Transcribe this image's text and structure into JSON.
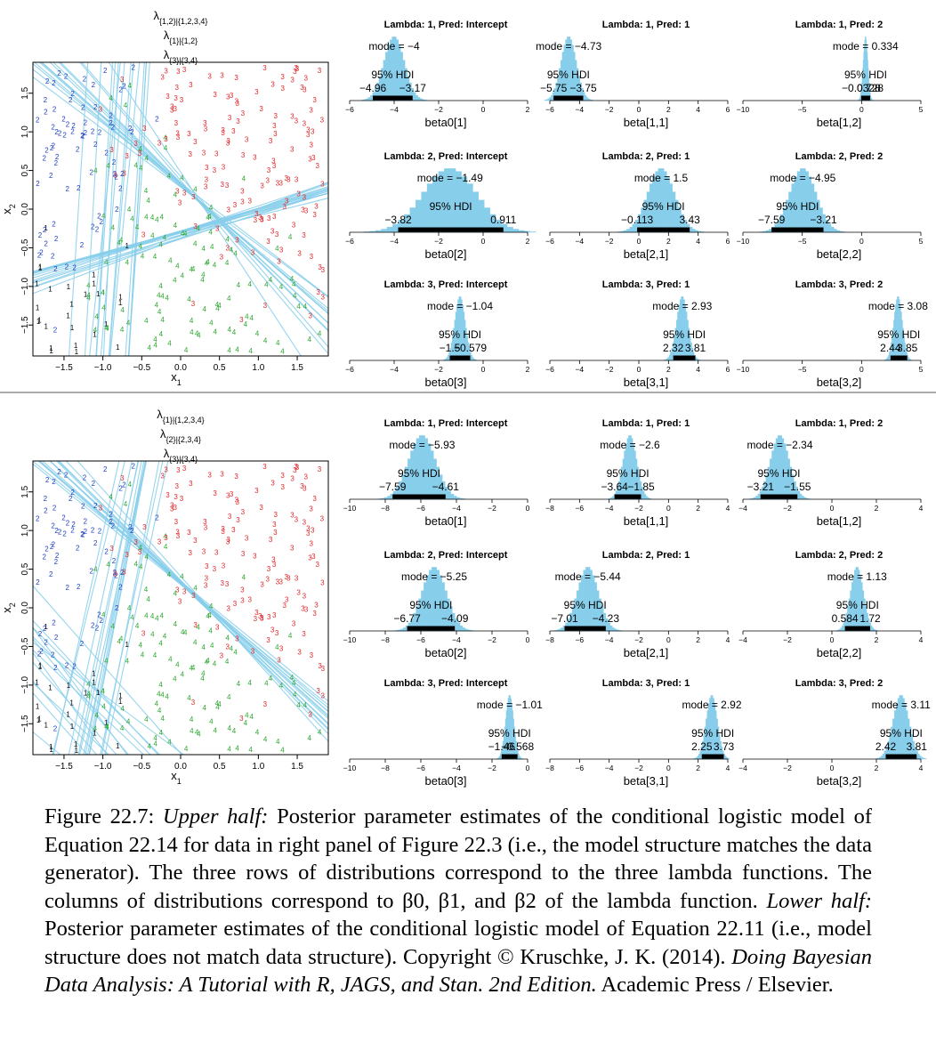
{
  "halves": [
    {
      "lambda_labels": [
        "λ{1,2}|{1,2,3,4}",
        "λ{1}|{1,2}",
        "λ{3}|{3,4}"
      ],
      "scatter": {
        "x_ticks": [
          "−1.5",
          "−1.0",
          "−0.5",
          "0.0",
          "0.5",
          "1.0",
          "1.5"
        ],
        "y_ticks": [
          "−1.5",
          "−1.0",
          "−0.5",
          "0.0",
          "0.5",
          "1.0",
          "1.5"
        ],
        "xlabel": "x1",
        "ylabel": "x2",
        "xlim": [
          -1.9,
          1.9
        ],
        "ylim": [
          -1.9,
          1.9
        ],
        "boundaries": [
          {
            "type": "line",
            "beta0": -4,
            "beta1": -4.73,
            "beta2": 0.334
          },
          {
            "type": "line",
            "beta0": -1.49,
            "beta1": 1.5,
            "beta2": -4.95
          },
          {
            "type": "line",
            "beta0": -1.04,
            "beta1": 2.93,
            "beta2": 3.08
          }
        ]
      },
      "panels": [
        [
          {
            "title": "Lambda: 1, Pred: Intercept",
            "mode": "−4",
            "hdi_lo": "−4.96",
            "hdi_hi": "−3.17",
            "xlabel": "beta0[1]",
            "xlim": [
              -6,
              2
            ],
            "ticks": [
              "−6",
              "−4",
              "−2",
              "0",
              "2"
            ],
            "mode_v": -4,
            "lo_v": -4.96,
            "hi_v": -3.17
          },
          {
            "title": "Lambda: 1, Pred: 1",
            "mode": "−4.73",
            "hdi_lo": "−5.75",
            "hdi_hi": "−3.75",
            "xlabel": "beta[1,1]",
            "xlim": [
              -6,
              6
            ],
            "ticks": [
              "−6",
              "−4",
              "−2",
              "0",
              "2",
              "4",
              "6"
            ],
            "mode_v": -4.73,
            "lo_v": -5.75,
            "hi_v": -3.75
          },
          {
            "title": "Lambda: 1, Pred: 2",
            "mode": "0.334",
            "hdi_lo": "−0.0328",
            "hdi_hi": "0.728",
            "xlabel": "beta[1,2]",
            "xlim": [
              -10,
              5
            ],
            "ticks": [
              "−10",
              "−5",
              "0",
              "5"
            ],
            "mode_v": 0.334,
            "lo_v": -0.0328,
            "hi_v": 0.728
          }
        ],
        [
          {
            "title": "Lambda: 2, Pred: Intercept",
            "mode": "−1.49",
            "hdi_lo": "−3.82",
            "hdi_hi": "0.911",
            "xlabel": "beta0[2]",
            "xlim": [
              -6,
              2
            ],
            "ticks": [
              "−6",
              "−4",
              "−2",
              "0",
              "2"
            ],
            "mode_v": -1.49,
            "lo_v": -3.82,
            "hi_v": 0.911
          },
          {
            "title": "Lambda: 2, Pred: 1",
            "mode": "1.5",
            "hdi_lo": "−0.113",
            "hdi_hi": "3.43",
            "xlabel": "beta[2,1]",
            "xlim": [
              -6,
              6
            ],
            "ticks": [
              "−6",
              "−4",
              "−2",
              "0",
              "2",
              "4",
              "6"
            ],
            "mode_v": 1.5,
            "lo_v": -0.113,
            "hi_v": 3.43
          },
          {
            "title": "Lambda: 2, Pred: 2",
            "mode": "−4.95",
            "hdi_lo": "−7.59",
            "hdi_hi": "−3.21",
            "xlabel": "beta[2,2]",
            "xlim": [
              -10,
              5
            ],
            "ticks": [
              "−10",
              "−5",
              "0",
              "5"
            ],
            "mode_v": -4.95,
            "lo_v": -7.59,
            "hi_v": -3.21
          }
        ],
        [
          {
            "title": "Lambda: 3, Pred: Intercept",
            "mode": "−1.04",
            "hdi_lo": "−1.5",
            "hdi_hi": "−0.579",
            "xlabel": "beta0[3]",
            "xlim": [
              -6,
              2
            ],
            "ticks": [
              "−6",
              "−4",
              "−2",
              "0",
              "2"
            ],
            "mode_v": -1.04,
            "lo_v": -1.5,
            "hi_v": -0.579
          },
          {
            "title": "Lambda: 3, Pred: 1",
            "mode": "2.93",
            "hdi_lo": "2.32",
            "hdi_hi": "3.81",
            "xlabel": "beta[3,1]",
            "xlim": [
              -6,
              6
            ],
            "ticks": [
              "−6",
              "−4",
              "−2",
              "0",
              "2",
              "4",
              "6"
            ],
            "mode_v": 2.93,
            "lo_v": 2.32,
            "hi_v": 3.81
          },
          {
            "title": "Lambda: 3, Pred: 2",
            "mode": "3.08",
            "hdi_lo": "2.44",
            "hdi_hi": "3.85",
            "xlabel": "beta[3,2]",
            "xlim": [
              -10,
              5
            ],
            "ticks": [
              "−10",
              "−5",
              "0",
              "5"
            ],
            "mode_v": 3.08,
            "lo_v": 2.44,
            "hi_v": 3.85
          }
        ]
      ]
    },
    {
      "lambda_labels": [
        "λ{1}|{1,2,3,4}",
        "λ{2}|{2,3,4}",
        "λ{3}|{3,4}"
      ],
      "scatter": {
        "x_ticks": [
          "−1.5",
          "−1.0",
          "−0.5",
          "0.0",
          "0.5",
          "1.0",
          "1.5"
        ],
        "y_ticks": [
          "−1.5",
          "−1.0",
          "−0.5",
          "0.0",
          "0.5",
          "1.0",
          "1.5"
        ],
        "xlabel": "x1",
        "ylabel": "x2",
        "xlim": [
          -1.9,
          1.9
        ],
        "ylim": [
          -1.9,
          1.9
        ],
        "boundaries": [
          {
            "type": "line",
            "beta0": -5.93,
            "beta1": -2.6,
            "beta2": -2.34
          },
          {
            "type": "line",
            "beta0": -5.25,
            "beta1": -5.44,
            "beta2": 1.13
          },
          {
            "type": "line",
            "beta0": -1.01,
            "beta1": 2.92,
            "beta2": 3.11
          }
        ]
      },
      "panels": [
        [
          {
            "title": "Lambda: 1, Pred: Intercept",
            "mode": "−5.93",
            "hdi_lo": "−7.59",
            "hdi_hi": "−4.61",
            "xlabel": "beta0[1]",
            "xlim": [
              -10,
              0
            ],
            "ticks": [
              "−10",
              "−8",
              "−6",
              "−4",
              "−2",
              "0"
            ],
            "mode_v": -5.93,
            "lo_v": -7.59,
            "hi_v": -4.61
          },
          {
            "title": "Lambda: 1, Pred: 1",
            "mode": "−2.6",
            "hdi_lo": "−3.64",
            "hdi_hi": "−1.85",
            "xlabel": "beta[1,1]",
            "xlim": [
              -8,
              4
            ],
            "ticks": [
              "−8",
              "−6",
              "−4",
              "−2",
              "0",
              "2",
              "4"
            ],
            "mode_v": -2.6,
            "lo_v": -3.64,
            "hi_v": -1.85
          },
          {
            "title": "Lambda: 1, Pred: 2",
            "mode": "−2.34",
            "hdi_lo": "−3.21",
            "hdi_hi": "−1.55",
            "xlabel": "beta[1,2]",
            "xlim": [
              -4,
              4
            ],
            "ticks": [
              "−4",
              "−2",
              "0",
              "2",
              "4"
            ],
            "mode_v": -2.34,
            "lo_v": -3.21,
            "hi_v": -1.55
          }
        ],
        [
          {
            "title": "Lambda: 2, Pred: Intercept",
            "mode": "−5.25",
            "hdi_lo": "−6.77",
            "hdi_hi": "−4.09",
            "xlabel": "beta0[2]",
            "xlim": [
              -10,
              0
            ],
            "ticks": [
              "−10",
              "−8",
              "−6",
              "−4",
              "−2",
              "0"
            ],
            "mode_v": -5.25,
            "lo_v": -6.77,
            "hi_v": -4.09
          },
          {
            "title": "Lambda: 2, Pred: 1",
            "mode": "−5.44",
            "hdi_lo": "−7.01",
            "hdi_hi": "−4.23",
            "xlabel": "beta[2,1]",
            "xlim": [
              -8,
              4
            ],
            "ticks": [
              "−8",
              "−6",
              "−4",
              "−2",
              "0",
              "2",
              "4"
            ],
            "mode_v": -5.44,
            "lo_v": -7.01,
            "hi_v": -4.23
          },
          {
            "title": "Lambda: 2, Pred: 2",
            "mode": "1.13",
            "hdi_lo": "0.584",
            "hdi_hi": "1.72",
            "xlabel": "beta[2,2]",
            "xlim": [
              -4,
              4
            ],
            "ticks": [
              "−4",
              "−2",
              "0",
              "2",
              "4"
            ],
            "mode_v": 1.13,
            "lo_v": 0.584,
            "hi_v": 1.72
          }
        ],
        [
          {
            "title": "Lambda: 3, Pred: Intercept",
            "mode": "−1.01",
            "hdi_lo": "−1.46",
            "hdi_hi": "−0.568",
            "xlabel": "beta0[3]",
            "xlim": [
              -10,
              0
            ],
            "ticks": [
              "−10",
              "−8",
              "−6",
              "−4",
              "−2",
              "0"
            ],
            "mode_v": -1.01,
            "lo_v": -1.46,
            "hi_v": -0.568
          },
          {
            "title": "Lambda: 3, Pred: 1",
            "mode": "2.92",
            "hdi_lo": "2.25",
            "hdi_hi": "3.73",
            "xlabel": "beta[3,1]",
            "xlim": [
              -8,
              4
            ],
            "ticks": [
              "−8",
              "−6",
              "−4",
              "−2",
              "0",
              "2",
              "4"
            ],
            "mode_v": 2.92,
            "lo_v": 2.25,
            "hi_v": 3.73
          },
          {
            "title": "Lambda: 3, Pred: 2",
            "mode": "3.11",
            "hdi_lo": "2.42",
            "hdi_hi": "3.81",
            "xlabel": "beta[3,2]",
            "xlim": [
              -4,
              4
            ],
            "ticks": [
              "−4",
              "−2",
              "0",
              "2",
              "4"
            ],
            "mode_v": 3.11,
            "lo_v": 2.42,
            "hi_v": 3.81
          }
        ]
      ]
    }
  ],
  "labels": {
    "mode_prefix": "mode = ",
    "hdi": "95% HDI"
  },
  "colors": {
    "hist": "#87CEEB",
    "line": "#87CEEB",
    "class1": "#000000",
    "class2": "#1f3fbf",
    "class3": "#e0282c",
    "class4": "#2fa830"
  },
  "caption": {
    "label": "Figure 22.7:",
    "upper_label": "Upper half:",
    "upper_text": "Posterior parameter estimates of the conditional logistic model of Equation 22.14 for data in right panel of Figure 22.3 (i.e., the model structure matches the data generator). The three rows of distributions correspond to the three lambda functions. The columns of distributions correspond to β0, β1, and β2 of the lambda function.",
    "lower_label": "Lower half:",
    "lower_text": "Posterior parameter estimates of the conditional logistic model of Equation 22.11 (i.e., model structure does not match data structure). Copyright © Kruschke, J. K. (2014).",
    "book_title": "Doing Bayesian Data Analysis: A Tutorial with R, JAGS, and Stan. 2nd Edition.",
    "publisher": "Academic Press / Elsevier."
  }
}
